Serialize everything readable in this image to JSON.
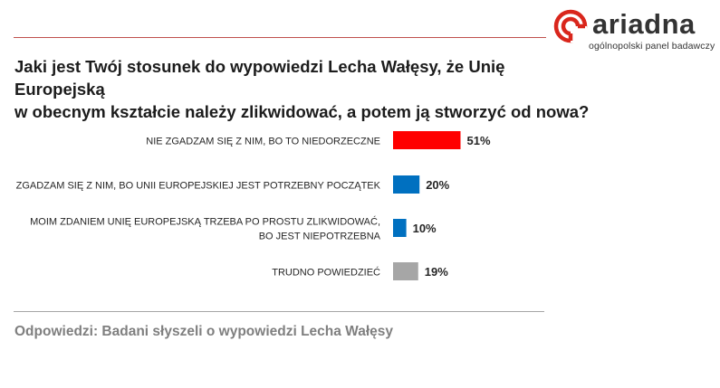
{
  "logo": {
    "word": "ariadna",
    "tagline": "ogólnopolski panel badawczy"
  },
  "question": {
    "line1": "Jaki jest Twój stosunek do wypowiedzi Lecha Wałęsy, że Unię Europejską",
    "line2": "w obecnym kształcie należy zlikwidować, a potem ją stworzyć od nowa?"
  },
  "footnote": "Odpowiedzi: Badani słyszeli o wypowiedzi Lecha Wałęsy",
  "chart_data": {
    "type": "bar",
    "orientation": "horizontal",
    "categories": [
      [
        "NIE ZGADZAM SIĘ Z NIM, BO TO NIEDORZECZNE"
      ],
      [
        "ZGADZAM SIĘ Z NIM, BO UNII EUROPEJSKIEJ JEST POTRZEBNY POCZĄTEK"
      ],
      [
        "MOIM ZDANIEM UNIĘ EUROPEJSKĄ TRZEBA PO PROSTU ZLIKWIDOWAĆ,",
        "BO JEST NIEPOTRZEBNA"
      ],
      [
        "TRUDNO POWIEDZIEĆ"
      ]
    ],
    "values": [
      51,
      20,
      10,
      19
    ],
    "value_labels": [
      "51%",
      "20%",
      "10%",
      "19%"
    ],
    "colors": [
      "#ff0000",
      "#0070c0",
      "#0070c0",
      "#a6a6a6"
    ],
    "xlim": [
      0,
      51
    ],
    "grid": false,
    "legend": "none"
  }
}
